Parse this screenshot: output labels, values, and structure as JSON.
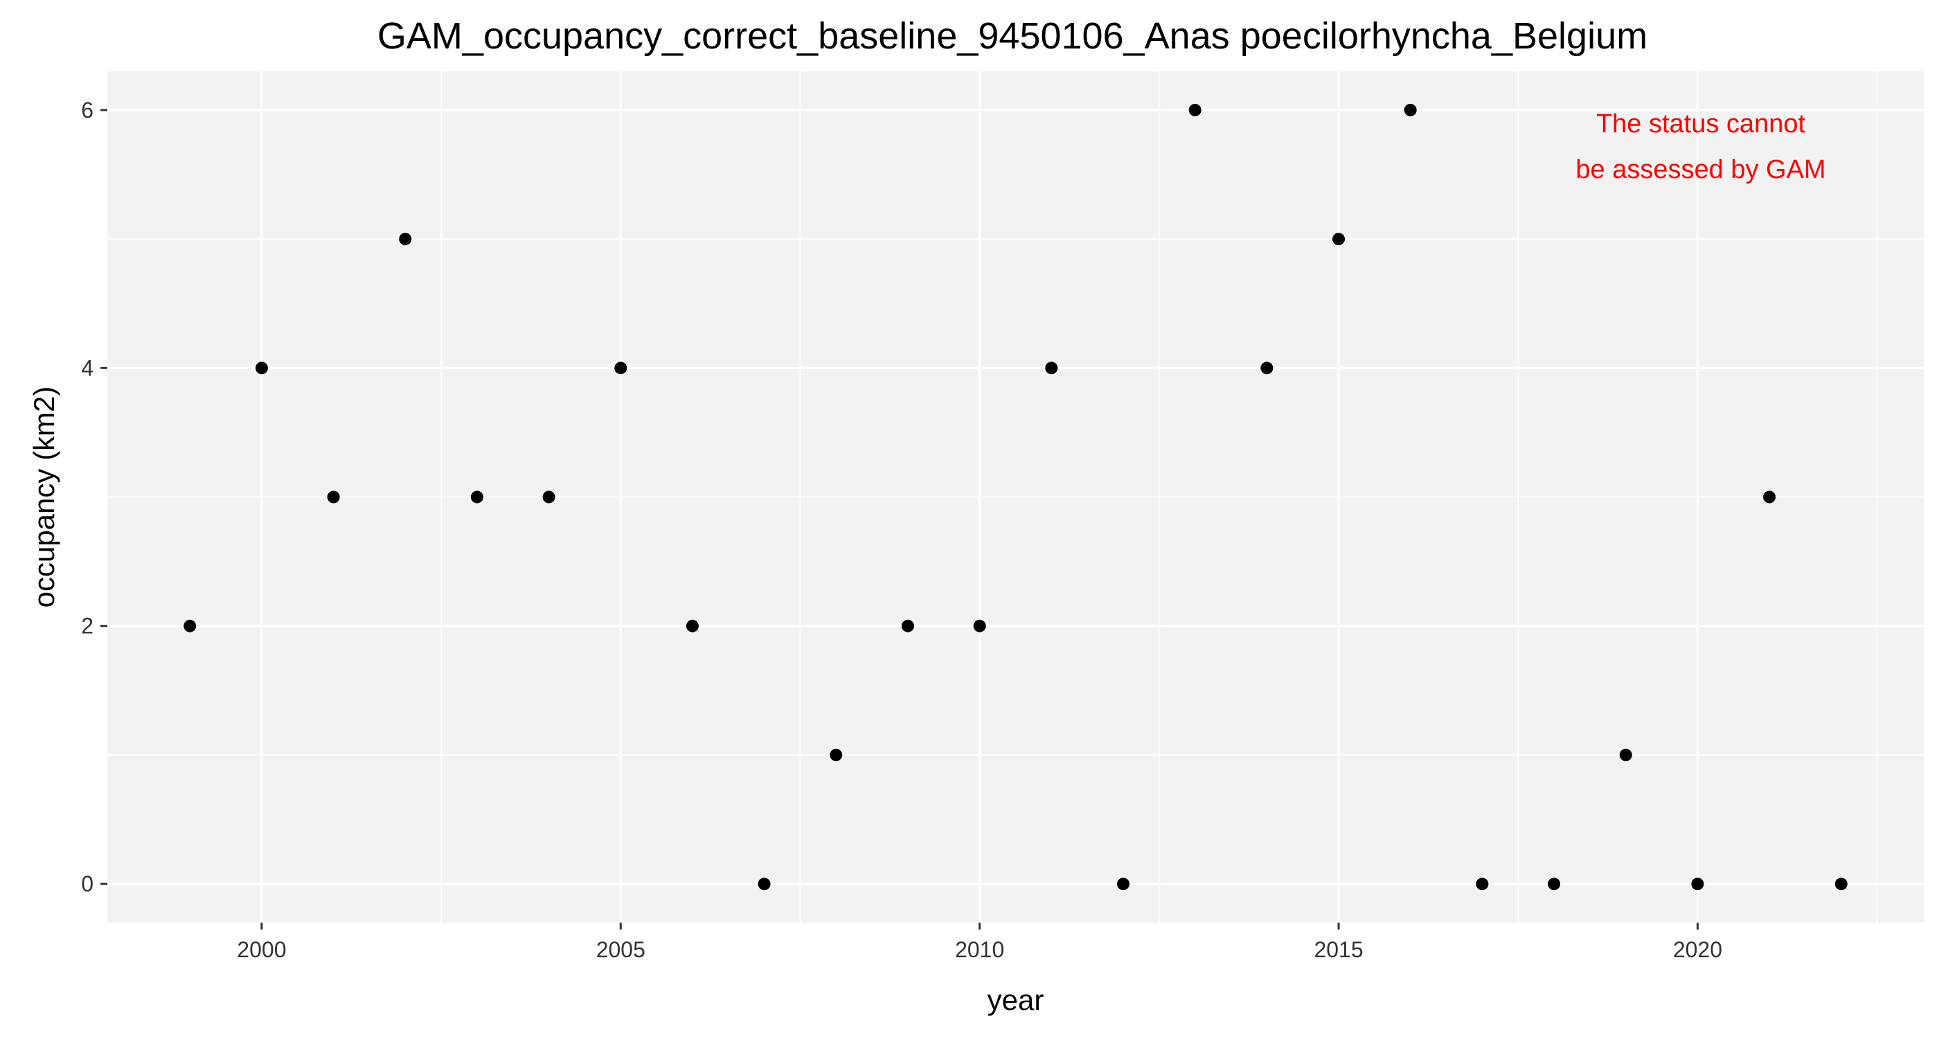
{
  "chart_data": {
    "type": "scatter",
    "title": "GAM_occupancy_correct_baseline_9450106_Anas poecilorhyncha_Belgium",
    "xlabel": "year",
    "ylabel": "occupancy (km2)",
    "x": [
      1999,
      2000,
      2001,
      2002,
      2003,
      2004,
      2005,
      2006,
      2007,
      2008,
      2009,
      2010,
      2011,
      2012,
      2013,
      2014,
      2015,
      2016,
      2017,
      2018,
      2019,
      2020,
      2021,
      2022
    ],
    "y": [
      2,
      4,
      3,
      5,
      3,
      3,
      4,
      2,
      0,
      1,
      2,
      2,
      4,
      0,
      6,
      4,
      5,
      6,
      0,
      0,
      1,
      0,
      3,
      0
    ],
    "xlim": [
      1997.85,
      2023.15
    ],
    "ylim": [
      -0.3,
      6.3
    ],
    "xticks": [
      2000,
      2005,
      2010,
      2015,
      2020
    ],
    "xtick_labels": [
      "2000",
      "2005",
      "2010",
      "2015",
      "2020"
    ],
    "yticks": [
      0,
      2,
      4,
      6
    ],
    "ytick_labels": [
      "0",
      "2",
      "4",
      "6"
    ],
    "grid": true,
    "legend": "none",
    "annotation": {
      "lines": [
        "The status cannot",
        "be assessed by GAM"
      ],
      "color": "#FF0000",
      "placement": "top-right"
    },
    "colors": {
      "panel_background": "#F2F2F2",
      "grid": "#FFFFFF",
      "points": "#000000"
    }
  }
}
